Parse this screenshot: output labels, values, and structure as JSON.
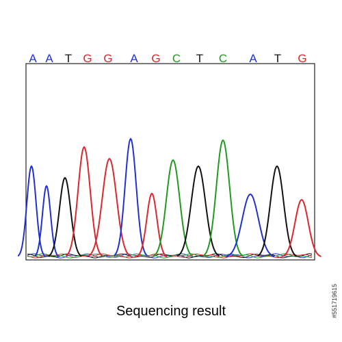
{
  "bases": [
    {
      "letter": "A",
      "color": "#1f2fd6"
    },
    {
      "letter": "A",
      "color": "#1f2fd6"
    },
    {
      "letter": "T",
      "color": "#111111"
    },
    {
      "letter": "G",
      "color": "#e0242a"
    },
    {
      "letter": "G",
      "color": "#e0242a"
    },
    {
      "letter": "A",
      "color": "#1f2fd6"
    },
    {
      "letter": "G",
      "color": "#e0242a"
    },
    {
      "letter": "C",
      "color": "#1e9a1e"
    },
    {
      "letter": "T",
      "color": "#111111"
    },
    {
      "letter": "C",
      "color": "#1e9a1e"
    },
    {
      "letter": "A",
      "color": "#1f2fd6"
    },
    {
      "letter": "T",
      "color": "#111111"
    },
    {
      "letter": "G",
      "color": "#e0242a"
    }
  ],
  "caption": "Sequencing result",
  "image_id": "#551719615"
}
